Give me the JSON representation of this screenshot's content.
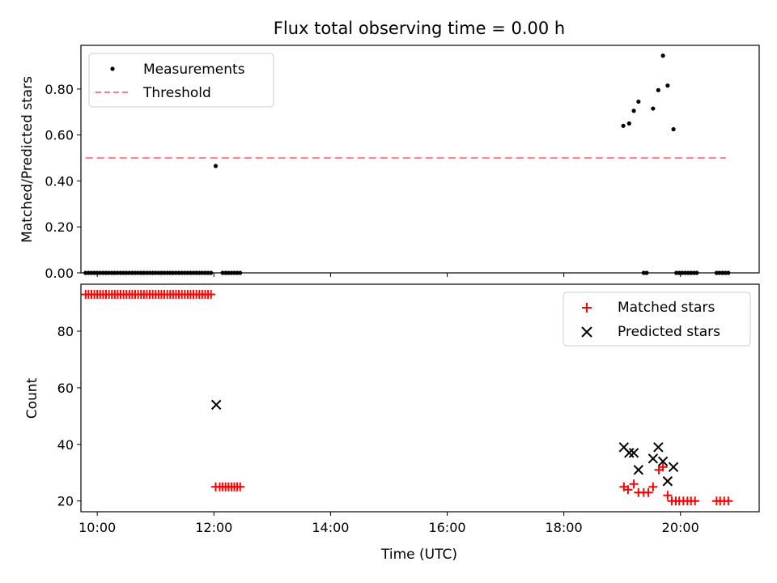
{
  "chart_data": [
    {
      "type": "scatter",
      "title": "Flux total observing time = 0.00 h",
      "xlabel": "",
      "ylabel": "Matched/Predicted stars",
      "xlim": [
        9.72,
        21.35
      ],
      "ylim": [
        0.0,
        0.99
      ],
      "yticks": [
        0.0,
        0.2,
        0.4,
        0.6,
        0.8
      ],
      "legend_position": "upper left",
      "series": [
        {
          "name": "Measurements",
          "marker": "dot",
          "color": "#000000",
          "points": [
            [
              9.8,
              0
            ],
            [
              9.85,
              0
            ],
            [
              9.9,
              0
            ],
            [
              9.95,
              0
            ],
            [
              10.0,
              0
            ],
            [
              10.05,
              0
            ],
            [
              10.1,
              0
            ],
            [
              10.15,
              0
            ],
            [
              10.2,
              0
            ],
            [
              10.25,
              0
            ],
            [
              10.3,
              0
            ],
            [
              10.35,
              0
            ],
            [
              10.4,
              0
            ],
            [
              10.45,
              0
            ],
            [
              10.5,
              0
            ],
            [
              10.55,
              0
            ],
            [
              10.6,
              0
            ],
            [
              10.65,
              0
            ],
            [
              10.7,
              0
            ],
            [
              10.75,
              0
            ],
            [
              10.8,
              0
            ],
            [
              10.85,
              0
            ],
            [
              10.9,
              0
            ],
            [
              10.95,
              0
            ],
            [
              11.0,
              0
            ],
            [
              11.05,
              0
            ],
            [
              11.1,
              0
            ],
            [
              11.15,
              0
            ],
            [
              11.2,
              0
            ],
            [
              11.25,
              0
            ],
            [
              11.3,
              0
            ],
            [
              11.35,
              0
            ],
            [
              11.4,
              0
            ],
            [
              11.45,
              0
            ],
            [
              11.5,
              0
            ],
            [
              11.55,
              0
            ],
            [
              11.6,
              0
            ],
            [
              11.65,
              0
            ],
            [
              11.7,
              0
            ],
            [
              11.75,
              0
            ],
            [
              11.8,
              0
            ],
            [
              11.85,
              0
            ],
            [
              11.9,
              0
            ],
            [
              11.95,
              0
            ],
            [
              12.03,
              0.465
            ],
            [
              12.15,
              0
            ],
            [
              12.2,
              0
            ],
            [
              12.25,
              0
            ],
            [
              12.3,
              0
            ],
            [
              12.35,
              0
            ],
            [
              12.4,
              0
            ],
            [
              12.45,
              0
            ],
            [
              19.02,
              0.64
            ],
            [
              19.12,
              0.65
            ],
            [
              19.2,
              0.705
            ],
            [
              19.28,
              0.745
            ],
            [
              19.37,
              0
            ],
            [
              19.42,
              0
            ],
            [
              19.53,
              0.715
            ],
            [
              19.62,
              0.795
            ],
            [
              19.7,
              0.945
            ],
            [
              19.78,
              0.815
            ],
            [
              19.88,
              0.625
            ],
            [
              19.93,
              0
            ],
            [
              19.98,
              0
            ],
            [
              20.03,
              0
            ],
            [
              20.08,
              0
            ],
            [
              20.13,
              0
            ],
            [
              20.18,
              0
            ],
            [
              20.23,
              0
            ],
            [
              20.28,
              0
            ],
            [
              20.62,
              0
            ],
            [
              20.67,
              0
            ],
            [
              20.72,
              0
            ],
            [
              20.77,
              0
            ],
            [
              20.82,
              0
            ]
          ]
        },
        {
          "name": "Threshold",
          "marker": "dashed-line",
          "color": "#ff7f7f",
          "points": [
            [
              9.8,
              0.5
            ],
            [
              20.78,
              0.5
            ]
          ]
        }
      ]
    },
    {
      "type": "scatter",
      "title": "",
      "xlabel": "Time (UTC)",
      "ylabel": "Count",
      "xlim": [
        9.72,
        21.35
      ],
      "ylim": [
        16.2,
        96.6
      ],
      "yticks": [
        20,
        40,
        60,
        80
      ],
      "xticks": [
        10,
        12,
        14,
        16,
        18,
        20
      ],
      "xtick_labels": [
        "10:00",
        "12:00",
        "14:00",
        "16:00",
        "18:00",
        "20:00"
      ],
      "legend_position": "upper right",
      "series": [
        {
          "name": "Matched stars",
          "marker": "plus",
          "color": "#ff0000",
          "points": [
            [
              9.8,
              93
            ],
            [
              9.85,
              93
            ],
            [
              9.9,
              93
            ],
            [
              9.95,
              93
            ],
            [
              10.0,
              93
            ],
            [
              10.05,
              93
            ],
            [
              10.1,
              93
            ],
            [
              10.15,
              93
            ],
            [
              10.2,
              93
            ],
            [
              10.25,
              93
            ],
            [
              10.3,
              93
            ],
            [
              10.35,
              93
            ],
            [
              10.4,
              93
            ],
            [
              10.45,
              93
            ],
            [
              10.5,
              93
            ],
            [
              10.55,
              93
            ],
            [
              10.6,
              93
            ],
            [
              10.65,
              93
            ],
            [
              10.7,
              93
            ],
            [
              10.75,
              93
            ],
            [
              10.8,
              93
            ],
            [
              10.85,
              93
            ],
            [
              10.9,
              93
            ],
            [
              10.95,
              93
            ],
            [
              11.0,
              93
            ],
            [
              11.05,
              93
            ],
            [
              11.1,
              93
            ],
            [
              11.15,
              93
            ],
            [
              11.2,
              93
            ],
            [
              11.25,
              93
            ],
            [
              11.3,
              93
            ],
            [
              11.35,
              93
            ],
            [
              11.4,
              93
            ],
            [
              11.45,
              93
            ],
            [
              11.5,
              93
            ],
            [
              11.55,
              93
            ],
            [
              11.6,
              93
            ],
            [
              11.65,
              93
            ],
            [
              11.7,
              93
            ],
            [
              11.75,
              93
            ],
            [
              11.8,
              93
            ],
            [
              11.85,
              93
            ],
            [
              11.9,
              93
            ],
            [
              11.95,
              93
            ],
            [
              12.03,
              25
            ],
            [
              12.1,
              25
            ],
            [
              12.15,
              25
            ],
            [
              12.2,
              25
            ],
            [
              12.25,
              25
            ],
            [
              12.3,
              25
            ],
            [
              12.35,
              25
            ],
            [
              12.4,
              25
            ],
            [
              12.45,
              25
            ],
            [
              19.03,
              25
            ],
            [
              19.1,
              24
            ],
            [
              19.2,
              26
            ],
            [
              19.28,
              23
            ],
            [
              19.37,
              23
            ],
            [
              19.45,
              23
            ],
            [
              19.53,
              25
            ],
            [
              19.63,
              31
            ],
            [
              19.7,
              32
            ],
            [
              19.78,
              22
            ],
            [
              19.85,
              20
            ],
            [
              19.92,
              20
            ],
            [
              19.98,
              20
            ],
            [
              20.05,
              20
            ],
            [
              20.12,
              20
            ],
            [
              20.18,
              20
            ],
            [
              20.25,
              20
            ],
            [
              20.62,
              20
            ],
            [
              20.68,
              20
            ],
            [
              20.75,
              20
            ],
            [
              20.82,
              20
            ]
          ]
        },
        {
          "name": "Predicted stars",
          "marker": "x",
          "color": "#000000",
          "points": [
            [
              12.04,
              54
            ],
            [
              19.03,
              39
            ],
            [
              19.12,
              37
            ],
            [
              19.2,
              37
            ],
            [
              19.28,
              31
            ],
            [
              19.53,
              35
            ],
            [
              19.62,
              39
            ],
            [
              19.7,
              34
            ],
            [
              19.78,
              27
            ],
            [
              19.88,
              32
            ]
          ]
        }
      ]
    }
  ]
}
